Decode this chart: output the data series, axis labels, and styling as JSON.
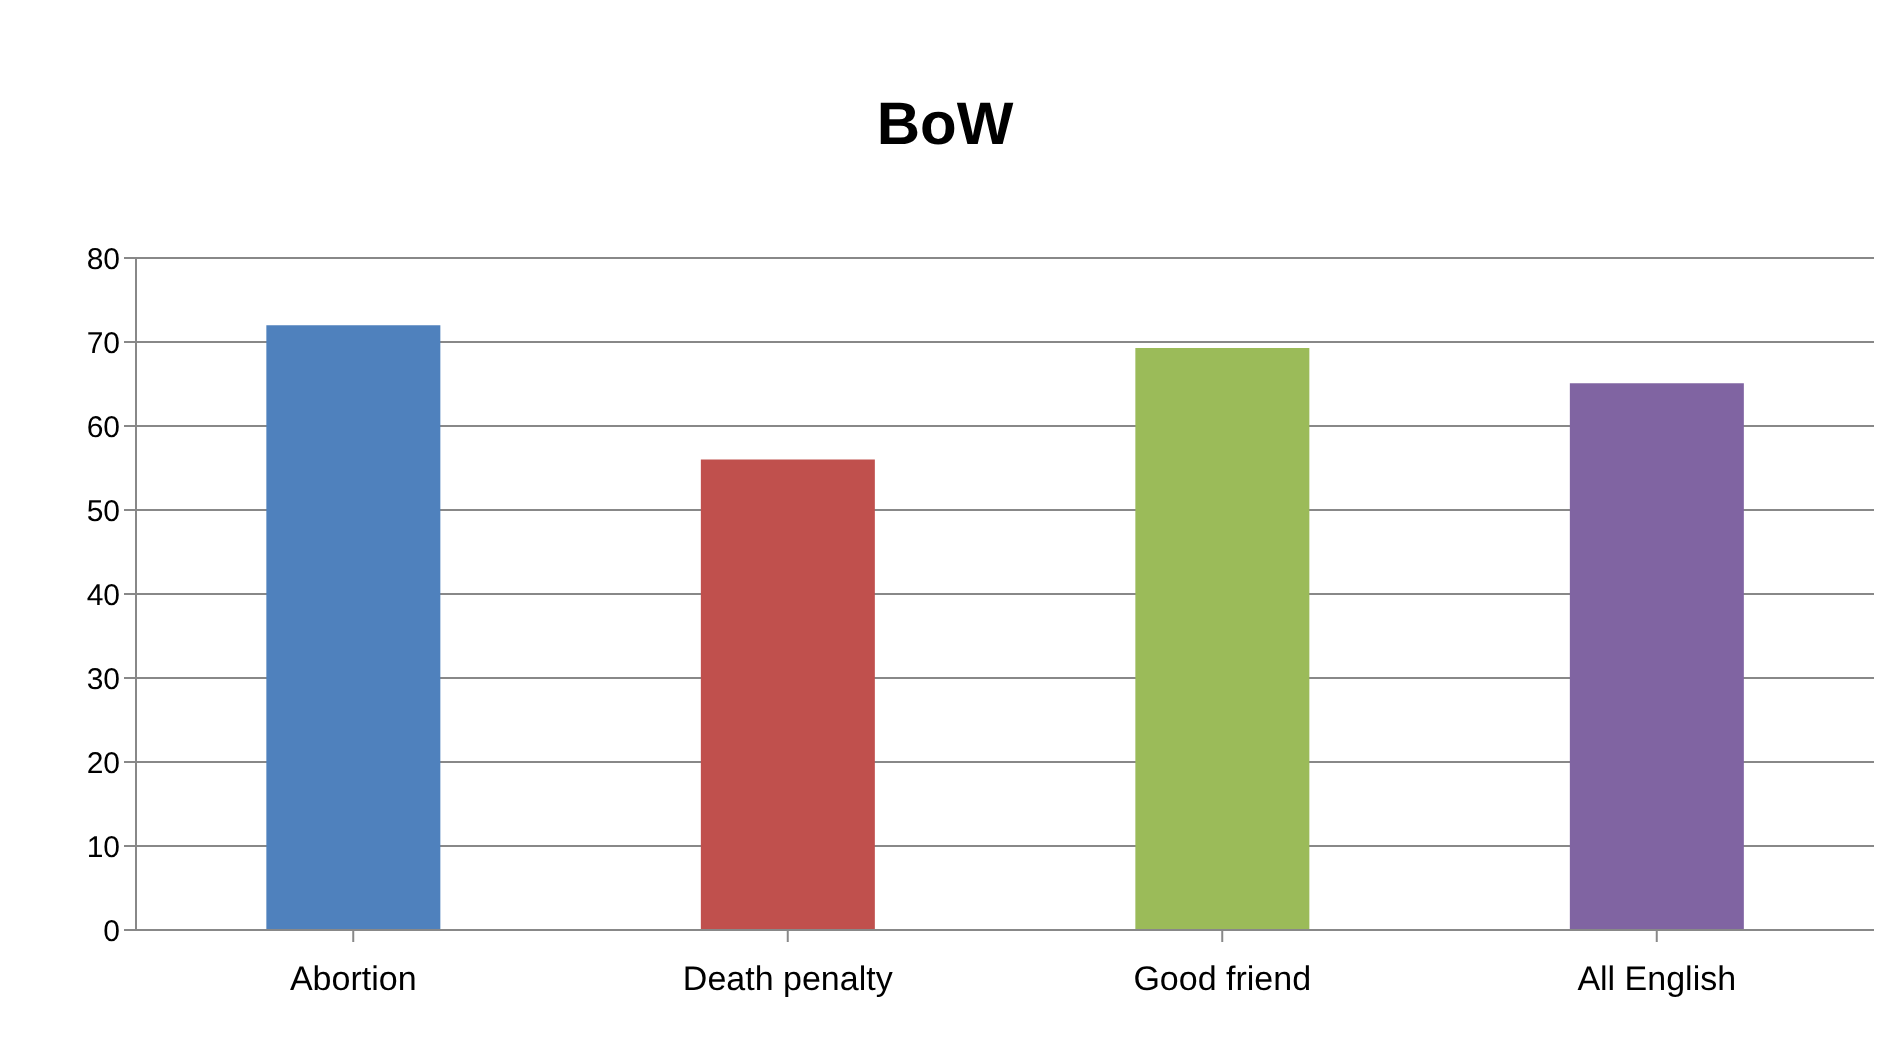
{
  "chart_data": {
    "type": "bar",
    "title": "BoW",
    "categories": [
      "Abortion",
      "Death penalty",
      "Good friend",
      "All English"
    ],
    "values": [
      72,
      56,
      69.3,
      65.1
    ],
    "colors": [
      "#4f81bd",
      "#c0504d",
      "#9bbb59",
      "#8064a2"
    ],
    "ylim": [
      0,
      80
    ],
    "yticks": [
      0,
      10,
      20,
      30,
      40,
      50,
      60,
      70,
      80
    ],
    "grid": "y"
  }
}
